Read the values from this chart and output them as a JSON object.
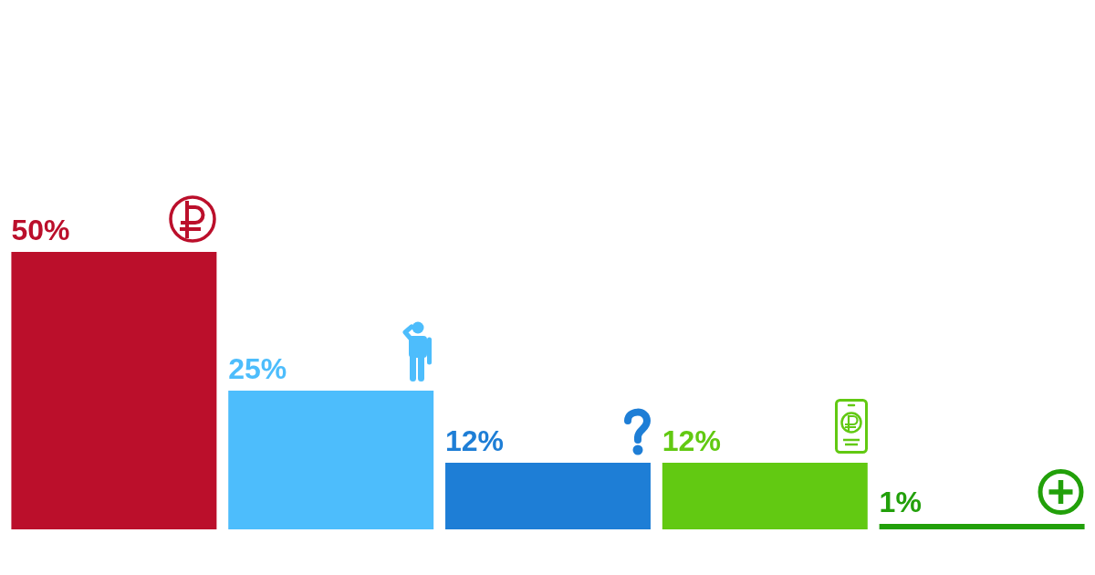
{
  "chart_data": {
    "type": "bar",
    "categories": [
      null,
      null,
      null,
      null,
      null
    ],
    "values": [
      50,
      25,
      12,
      12,
      1
    ],
    "colors": [
      "#bb0f2b",
      "#4dbdfc",
      "#1e7ed6",
      "#62c912",
      "#22a00a"
    ],
    "value_labels": [
      "50%",
      "25%",
      "12%",
      "12%",
      "1%"
    ]
  }
}
